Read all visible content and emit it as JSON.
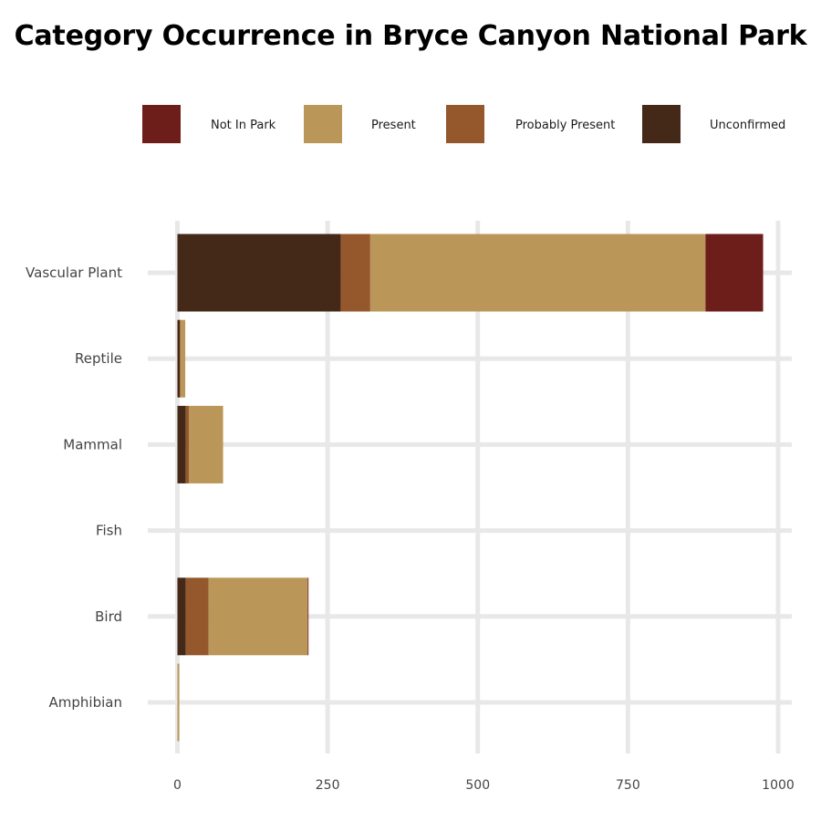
{
  "chart_data": {
    "type": "bar",
    "orientation": "horizontal",
    "stacked": true,
    "title": "Category Occurrence in Bryce Canyon National Park",
    "xlabel": "",
    "ylabel": "",
    "xlim": [
      0,
      1000
    ],
    "x_ticks": [
      0,
      250,
      500,
      750,
      1000
    ],
    "grid": true,
    "legend_position": "top",
    "categories": [
      "Vascular Plant",
      "Reptile",
      "Mammal",
      "Fish",
      "Bird",
      "Amphibian"
    ],
    "stack_order": [
      "Unconfirmed",
      "Probably Present",
      "Present",
      "Not In Park"
    ],
    "series": [
      {
        "name": "Not In Park",
        "color": "#6e1e1a",
        "values": [
          96,
          0,
          0,
          0,
          1,
          0
        ]
      },
      {
        "name": "Present",
        "color": "#bb9659",
        "values": [
          558,
          8,
          57,
          0,
          165,
          3
        ]
      },
      {
        "name": "Probably Present",
        "color": "#95582c",
        "values": [
          49,
          1,
          5,
          0,
          38,
          0
        ]
      },
      {
        "name": "Unconfirmed",
        "color": "#442818",
        "values": [
          272,
          4,
          14,
          0,
          14,
          0
        ]
      }
    ]
  }
}
